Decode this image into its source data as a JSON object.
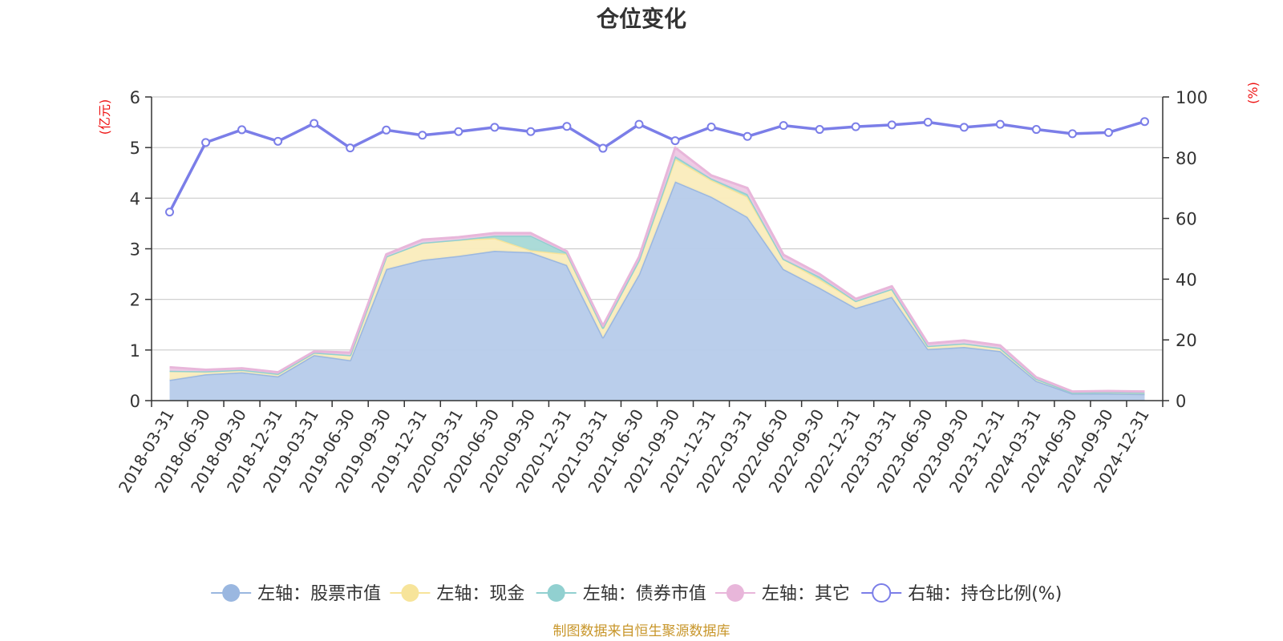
{
  "chart_data": {
    "type": "area",
    "title": "仓位变化",
    "left_unit": "(亿元)",
    "right_unit": "(%)",
    "left_ylim": [
      0,
      6
    ],
    "left_ticks": [
      "0",
      "1",
      "2",
      "3",
      "4",
      "5",
      "6"
    ],
    "right_ylim": [
      0,
      100
    ],
    "right_ticks": [
      "0",
      "20",
      "40",
      "60",
      "80",
      "100"
    ],
    "grid": true,
    "legend_position": "bottom",
    "categories": [
      "2018-03-31",
      "2018-06-30",
      "2018-09-30",
      "2018-12-31",
      "2019-03-31",
      "2019-06-30",
      "2019-09-30",
      "2019-12-31",
      "2020-03-31",
      "2020-06-30",
      "2020-09-30",
      "2020-12-31",
      "2021-03-31",
      "2021-06-30",
      "2021-09-30",
      "2021-12-31",
      "2022-03-31",
      "2022-06-30",
      "2022-09-30",
      "2022-12-31",
      "2023-03-31",
      "2023-06-30",
      "2023-09-30",
      "2023-12-31",
      "2024-03-31",
      "2024-06-30",
      "2024-09-30",
      "2024-12-31"
    ],
    "series": [
      {
        "name": "左轴：股票市值",
        "axis": "left",
        "kind": "stacked-area",
        "color": "#9ab7e0",
        "fill": "#b6cbea",
        "values": [
          0.41,
          0.52,
          0.56,
          0.48,
          0.9,
          0.8,
          2.6,
          2.78,
          2.86,
          2.96,
          2.93,
          2.68,
          1.25,
          2.5,
          4.33,
          4.03,
          3.63,
          2.6,
          2.23,
          1.83,
          2.05,
          1.02,
          1.06,
          0.98,
          0.39,
          0.14,
          0.14,
          0.13
        ]
      },
      {
        "name": "左轴：现金",
        "axis": "left",
        "kind": "stacked-area",
        "color": "#f7e49a",
        "fill": "#faecbc",
        "values": [
          0.18,
          0.06,
          0.05,
          0.05,
          0.05,
          0.1,
          0.25,
          0.34,
          0.32,
          0.25,
          0.04,
          0.22,
          0.19,
          0.28,
          0.45,
          0.33,
          0.4,
          0.2,
          0.17,
          0.14,
          0.16,
          0.06,
          0.07,
          0.06,
          0.04,
          0.02,
          0.03,
          0.03
        ]
      },
      {
        "name": "左轴：债券市值",
        "axis": "left",
        "kind": "stacked-area",
        "color": "#91d0d0",
        "fill": "#a6d9d6",
        "values": [
          0,
          0,
          0,
          0,
          0,
          0,
          0,
          0,
          0,
          0.05,
          0.29,
          0.02,
          0,
          0,
          0.05,
          0.03,
          0.05,
          0,
          0.05,
          0,
          0,
          0,
          0,
          0,
          0,
          0,
          0,
          0
        ]
      },
      {
        "name": "左轴：其它",
        "axis": "left",
        "kind": "stacked-area",
        "color": "#e8b6da",
        "fill": "#eec8e4",
        "values": [
          0.07,
          0.03,
          0.03,
          0.03,
          0.02,
          0.05,
          0.04,
          0.06,
          0.05,
          0.05,
          0.05,
          0.03,
          0.04,
          0.06,
          0.17,
          0.06,
          0.12,
          0.08,
          0.05,
          0.04,
          0.05,
          0.05,
          0.06,
          0.05,
          0.03,
          0.02,
          0.02,
          0.02
        ]
      },
      {
        "name": "右轴：持仓比例(%)",
        "axis": "right",
        "kind": "line",
        "color": "#7b7ee8",
        "values": [
          62.1,
          85,
          89.2,
          85.4,
          91.3,
          83.2,
          89.1,
          87.4,
          88.6,
          90,
          88.6,
          90.3,
          83.1,
          91,
          85.6,
          90.1,
          87,
          90.6,
          89.3,
          90.2,
          90.8,
          91.7,
          90,
          91,
          89.3,
          87.9,
          88.3,
          91.9
        ]
      }
    ]
  },
  "footer": {
    "source": "制图数据来自恒生聚源数据库"
  }
}
